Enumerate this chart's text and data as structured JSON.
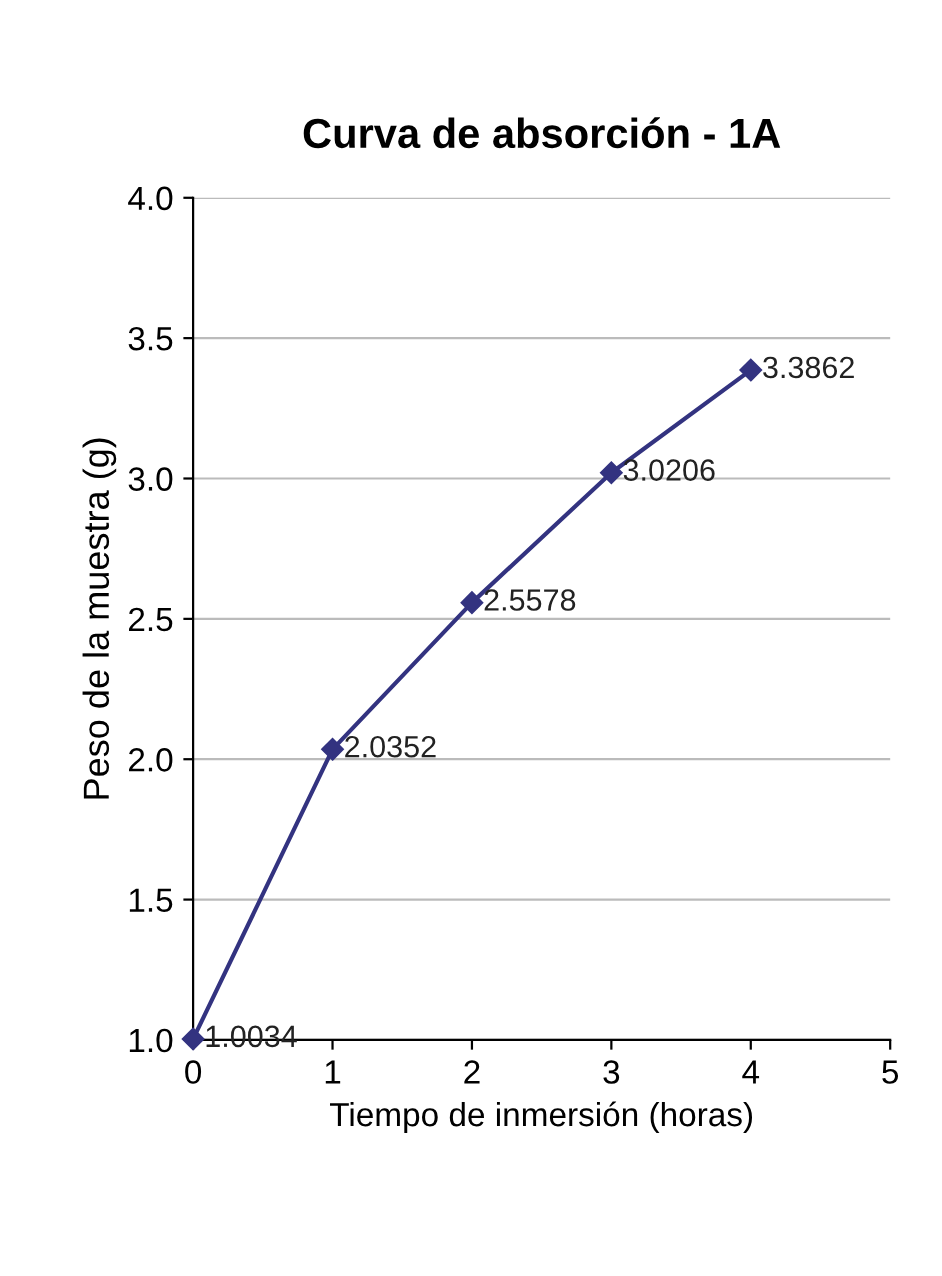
{
  "chart_data": {
    "type": "line",
    "title": "Curva de absorción - 1A",
    "xlabel": "Tiempo de inmersión (horas)",
    "ylabel": "Peso de la muestra (g)",
    "x": [
      0,
      1,
      2,
      3,
      4
    ],
    "series": [
      {
        "color": "#333380",
        "values": [
          1.0034,
          2.0352,
          2.5578,
          3.0206,
          3.3862
        ]
      }
    ],
    "xlim": [
      0,
      5
    ],
    "xticks": [
      0,
      1,
      2,
      3,
      4,
      5
    ],
    "ylim": [
      1,
      4
    ],
    "yticks": [
      {
        "value": 1,
        "label": "1.0"
      },
      {
        "value": 1.5,
        "label": "1.5"
      },
      {
        "value": 2,
        "label": "2.0"
      },
      {
        "value": 2.5,
        "label": "2.5"
      },
      {
        "value": 3,
        "label": "3.0"
      },
      {
        "value": 3.5,
        "label": "3.5"
      },
      {
        "value": 4,
        "label": "4.0"
      }
    ],
    "grid": "y",
    "marker": "diamond",
    "line_style": "solid",
    "data_labels": true
  }
}
